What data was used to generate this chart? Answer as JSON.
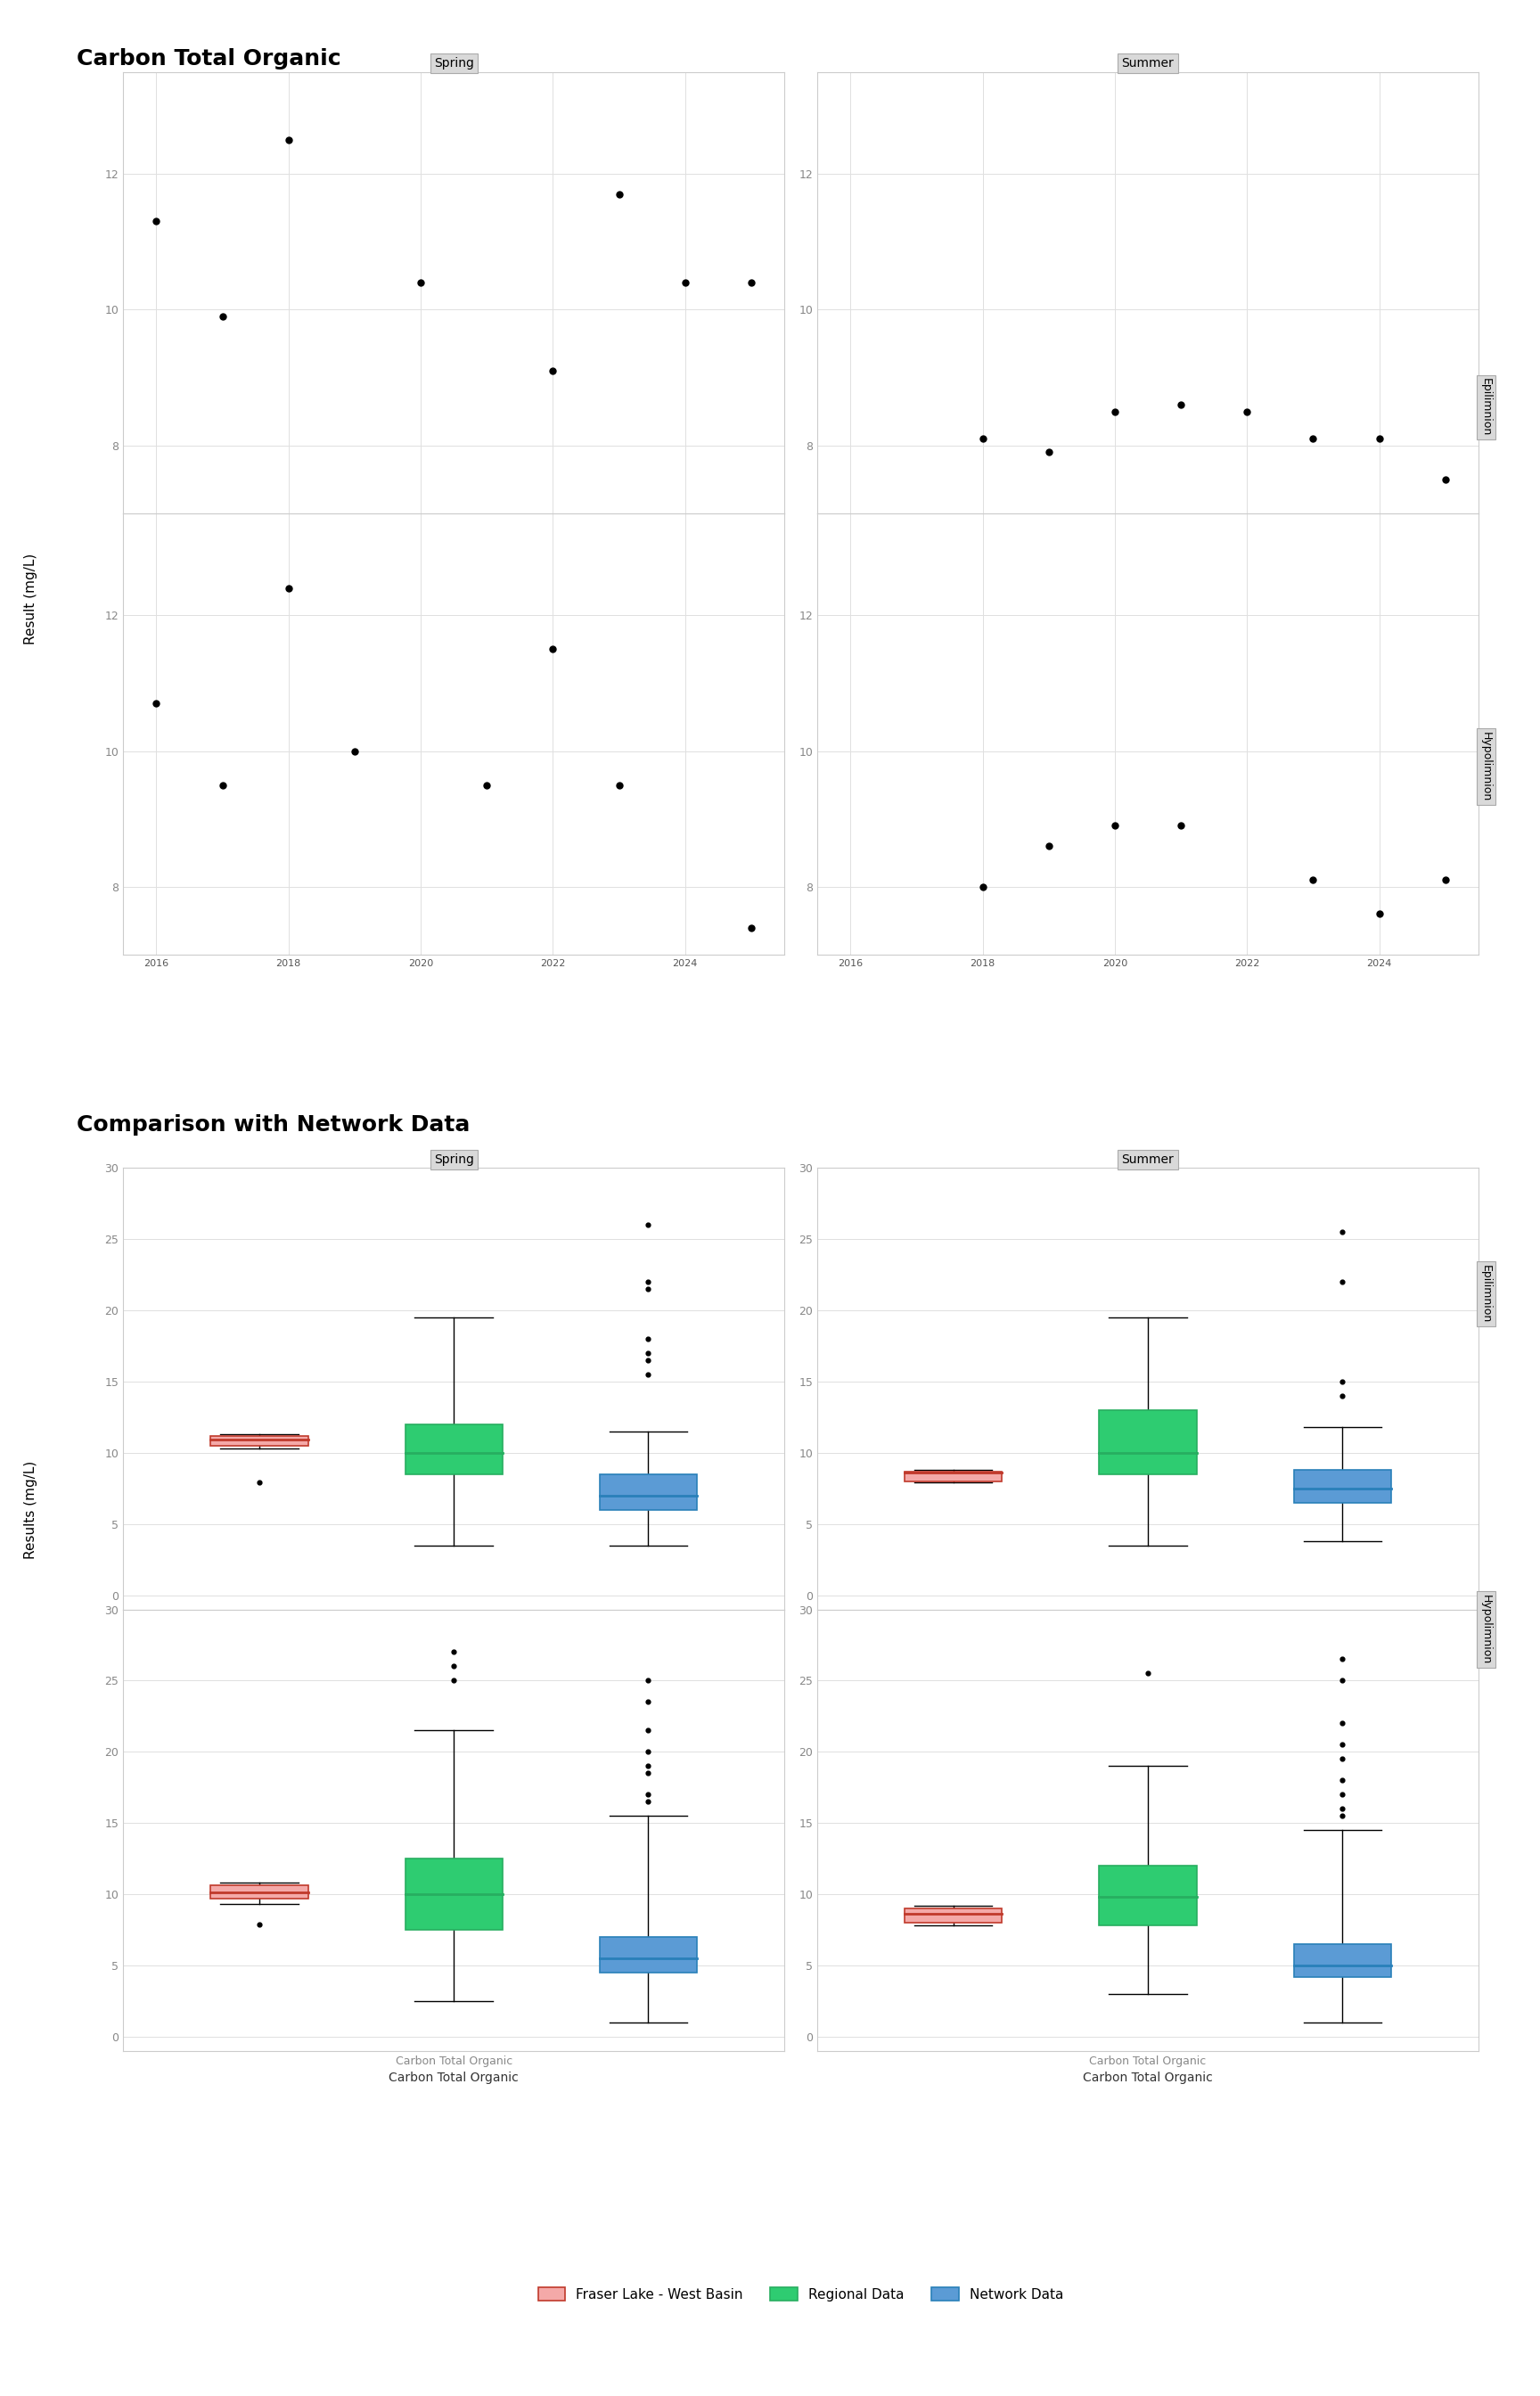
{
  "title1": "Carbon Total Organic",
  "title2": "Comparison with Network Data",
  "ylabel_scatter": "Result (mg/L)",
  "ylabel_box": "Results (mg/L)",
  "xlabel_box": "Carbon Total Organic",
  "scatter": {
    "spring_epilimnion": {
      "years": [
        2016,
        2017,
        2018,
        2019,
        2020,
        2021,
        2022,
        2023,
        2024,
        2025
      ],
      "values": [
        11.3,
        9.9,
        12.5,
        null,
        10.4,
        null,
        9.1,
        11.7,
        10.4,
        10.4
      ]
    },
    "summer_epilimnion": {
      "years": [
        2016,
        2017,
        2018,
        2019,
        2020,
        2021,
        2022,
        2023,
        2024,
        2025
      ],
      "values": [
        null,
        null,
        8.1,
        7.9,
        8.5,
        8.6,
        8.5,
        8.1,
        8.1,
        7.5
      ]
    },
    "spring_hypolimnion": {
      "years": [
        2016,
        2017,
        2018,
        2019,
        2020,
        2021,
        2022,
        2023,
        2024,
        2025
      ],
      "values": [
        10.7,
        9.5,
        12.4,
        10.0,
        null,
        9.5,
        11.5,
        9.5,
        null,
        7.4
      ]
    },
    "summer_hypolimnion": {
      "years": [
        2016,
        2017,
        2018,
        2019,
        2020,
        2021,
        2022,
        2023,
        2024,
        2025
      ],
      "values": [
        null,
        null,
        8.0,
        8.6,
        8.9,
        8.9,
        null,
        8.1,
        7.6,
        8.1
      ]
    }
  },
  "scatter_xlim": [
    2015.5,
    2025.5
  ],
  "scatter_spring_ylim": [
    7.0,
    13.5
  ],
  "scatter_summer_epi_ylim": [
    7.0,
    13.5
  ],
  "scatter_hypo_ylim": [
    7.0,
    13.5
  ],
  "box": {
    "fraser_spring_epi": {
      "q1": 10.5,
      "median": 10.9,
      "q3": 11.2,
      "whislo": 10.3,
      "whishi": 11.3,
      "fliers": [
        7.9
      ]
    },
    "regional_spring_epi": {
      "q1": 8.5,
      "median": 10.0,
      "q3": 12.0,
      "whislo": 3.5,
      "whishi": 19.5,
      "fliers": []
    },
    "network_spring_epi": {
      "q1": 6.0,
      "median": 7.0,
      "q3": 8.5,
      "whislo": 3.5,
      "whishi": 11.5,
      "fliers": [
        15.5,
        16.5,
        17.0,
        18.0,
        21.5,
        22.0,
        26.0
      ]
    },
    "fraser_summer_epi": {
      "q1": 8.0,
      "median": 8.6,
      "q3": 8.7,
      "whislo": 7.9,
      "whishi": 8.8,
      "fliers": []
    },
    "regional_summer_epi": {
      "q1": 8.5,
      "median": 10.0,
      "q3": 13.0,
      "whislo": 3.5,
      "whishi": 19.5,
      "fliers": []
    },
    "network_summer_epi": {
      "q1": 6.5,
      "median": 7.5,
      "q3": 8.8,
      "whislo": 3.8,
      "whishi": 11.8,
      "fliers": [
        14.0,
        15.0,
        22.0,
        25.5
      ]
    },
    "fraser_spring_hypo": {
      "q1": 9.7,
      "median": 10.1,
      "q3": 10.6,
      "whislo": 9.3,
      "whishi": 10.8,
      "fliers": [
        7.9
      ]
    },
    "regional_spring_hypo": {
      "q1": 7.5,
      "median": 10.0,
      "q3": 12.5,
      "whislo": 2.5,
      "whishi": 21.5,
      "fliers": [
        25.0,
        26.0,
        27.0
      ]
    },
    "network_spring_hypo": {
      "q1": 4.5,
      "median": 5.5,
      "q3": 7.0,
      "whislo": 1.0,
      "whishi": 15.5,
      "fliers": [
        16.5,
        17.0,
        18.5,
        19.0,
        20.0,
        21.5,
        23.5,
        25.0
      ]
    },
    "fraser_summer_hypo": {
      "q1": 8.0,
      "median": 8.6,
      "q3": 9.0,
      "whislo": 7.8,
      "whishi": 9.2,
      "fliers": []
    },
    "regional_summer_hypo": {
      "q1": 7.8,
      "median": 9.8,
      "q3": 12.0,
      "whislo": 3.0,
      "whishi": 19.0,
      "fliers": [
        25.5
      ]
    },
    "network_summer_hypo": {
      "q1": 4.2,
      "median": 5.0,
      "q3": 6.5,
      "whislo": 1.0,
      "whishi": 14.5,
      "fliers": [
        15.5,
        16.0,
        17.0,
        18.0,
        19.5,
        20.5,
        22.0,
        25.0,
        26.5
      ]
    }
  },
  "colors": {
    "fraser": "#F4A9A8",
    "fraser_edge": "#C0392B",
    "regional": "#2ECC71",
    "regional_edge": "#27AE60",
    "network": "#5B9BD5",
    "network_edge": "#2980B9"
  },
  "legend": {
    "fraser_label": "Fraser Lake - West Basin",
    "regional_label": "Regional Data",
    "network_label": "Network Data"
  }
}
